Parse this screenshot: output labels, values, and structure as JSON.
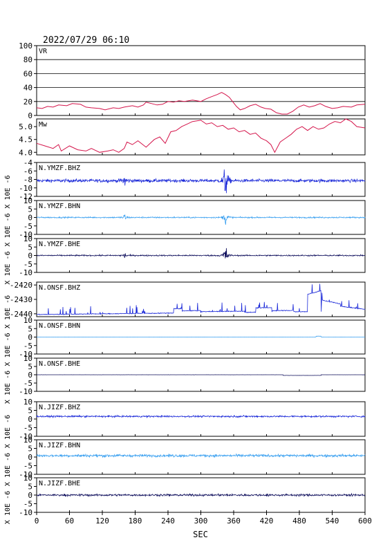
{
  "header": {
    "datetime": "2022/07/29 06:10"
  },
  "chart_data": {
    "type": "line",
    "xlabel": "SEC",
    "xlim": [
      0,
      600
    ],
    "xticks": [
      0,
      60,
      120,
      180,
      240,
      300,
      360,
      420,
      480,
      540,
      600
    ],
    "panels": [
      {
        "label": "VR",
        "kind": "line",
        "color": "#d4144a",
        "ylim": [
          0,
          100
        ],
        "yticks": [
          "0",
          "20",
          "40",
          "60",
          "80",
          "100"
        ],
        "grid": true,
        "points": [
          [
            0,
            11
          ],
          [
            10,
            10
          ],
          [
            20,
            13
          ],
          [
            30,
            12
          ],
          [
            40,
            15
          ],
          [
            55,
            14
          ],
          [
            65,
            17
          ],
          [
            80,
            16
          ],
          [
            90,
            12
          ],
          [
            100,
            11
          ],
          [
            115,
            10
          ],
          [
            125,
            8
          ],
          [
            140,
            11
          ],
          [
            150,
            10
          ],
          [
            160,
            12
          ],
          [
            175,
            14
          ],
          [
            185,
            12
          ],
          [
            195,
            15
          ],
          [
            200,
            19
          ],
          [
            210,
            17
          ],
          [
            220,
            15
          ],
          [
            230,
            16
          ],
          [
            240,
            20
          ],
          [
            250,
            19
          ],
          [
            260,
            21
          ],
          [
            270,
            20
          ],
          [
            285,
            22
          ],
          [
            300,
            20
          ],
          [
            310,
            24
          ],
          [
            320,
            27
          ],
          [
            330,
            30
          ],
          [
            338,
            33
          ],
          [
            345,
            30
          ],
          [
            352,
            26
          ],
          [
            358,
            20
          ],
          [
            365,
            13
          ],
          [
            372,
            8
          ],
          [
            380,
            10
          ],
          [
            390,
            14
          ],
          [
            400,
            16
          ],
          [
            410,
            12
          ],
          [
            418,
            10
          ],
          [
            428,
            9
          ],
          [
            438,
            4
          ],
          [
            448,
            2
          ],
          [
            458,
            2
          ],
          [
            468,
            6
          ],
          [
            478,
            12
          ],
          [
            488,
            15
          ],
          [
            498,
            12
          ],
          [
            508,
            14
          ],
          [
            518,
            17
          ],
          [
            528,
            13
          ],
          [
            540,
            10
          ],
          [
            550,
            11
          ],
          [
            560,
            13
          ],
          [
            575,
            12
          ],
          [
            585,
            15
          ],
          [
            600,
            16
          ]
        ]
      },
      {
        "label": "Mw",
        "kind": "line",
        "color": "#d4144a",
        "ylim": [
          3.9,
          5.3
        ],
        "yticks": [
          "4.0",
          "4.5",
          "5.0"
        ],
        "grid": false,
        "points": [
          [
            0,
            4.35
          ],
          [
            15,
            4.25
          ],
          [
            30,
            4.15
          ],
          [
            40,
            4.3
          ],
          [
            45,
            4.05
          ],
          [
            60,
            4.25
          ],
          [
            75,
            4.1
          ],
          [
            90,
            4.05
          ],
          [
            100,
            4.15
          ],
          [
            115,
            4.0
          ],
          [
            130,
            4.05
          ],
          [
            140,
            4.1
          ],
          [
            150,
            4.0
          ],
          [
            160,
            4.15
          ],
          [
            165,
            4.4
          ],
          [
            175,
            4.3
          ],
          [
            185,
            4.45
          ],
          [
            200,
            4.2
          ],
          [
            215,
            4.5
          ],
          [
            225,
            4.6
          ],
          [
            235,
            4.35
          ],
          [
            245,
            4.8
          ],
          [
            255,
            4.85
          ],
          [
            265,
            5.0
          ],
          [
            275,
            5.1
          ],
          [
            285,
            5.2
          ],
          [
            300,
            5.25
          ],
          [
            310,
            5.1
          ],
          [
            320,
            5.15
          ],
          [
            330,
            5.0
          ],
          [
            340,
            5.05
          ],
          [
            350,
            4.9
          ],
          [
            360,
            4.95
          ],
          [
            370,
            4.8
          ],
          [
            380,
            4.85
          ],
          [
            390,
            4.7
          ],
          [
            400,
            4.75
          ],
          [
            410,
            4.55
          ],
          [
            420,
            4.45
          ],
          [
            428,
            4.3
          ],
          [
            435,
            4.0
          ],
          [
            445,
            4.4
          ],
          [
            455,
            4.55
          ],
          [
            465,
            4.7
          ],
          [
            475,
            4.9
          ],
          [
            485,
            5.0
          ],
          [
            495,
            4.85
          ],
          [
            505,
            5.0
          ],
          [
            515,
            4.9
          ],
          [
            525,
            4.95
          ],
          [
            535,
            5.1
          ],
          [
            545,
            5.2
          ],
          [
            555,
            5.15
          ],
          [
            565,
            5.3
          ],
          [
            575,
            5.2
          ],
          [
            585,
            5.0
          ],
          [
            600,
            4.95
          ]
        ]
      },
      {
        "label": "N.YMZF.BHZ",
        "kind": "wave",
        "color": "#1a28d8",
        "ylim": [
          -12,
          -4
        ],
        "yticks": [
          "-4",
          "-6",
          "-8",
          "-10",
          "-12"
        ],
        "unit": "X 10E -6",
        "baseline": -8.3,
        "noise": 0.35,
        "events": [
          [
            161,
            1.6
          ],
          [
            345,
            4.8
          ]
        ]
      },
      {
        "label": "N.YMZF.BHN",
        "kind": "wave",
        "color": "#3aa0f0",
        "ylim": [
          -10,
          10
        ],
        "yticks": [
          "10",
          "5",
          "0",
          "-5",
          "-10"
        ],
        "unit": "X 10E -6",
        "baseline": 0,
        "noise": 0.35,
        "events": [
          [
            161,
            2.2
          ],
          [
            346,
            4.8
          ]
        ]
      },
      {
        "label": "N.YMZF.BHE",
        "kind": "wave",
        "color": "#0c0c5a",
        "ylim": [
          -10,
          10
        ],
        "yticks": [
          "10",
          "5",
          "0",
          "-5",
          "-10"
        ],
        "unit": "X 10E -6",
        "baseline": 0,
        "noise": 0.35,
        "events": [
          [
            161,
            1.7
          ],
          [
            345,
            7.0
          ]
        ]
      },
      {
        "label": "N.ONSF.BHZ",
        "kind": "wave",
        "color": "#1a28d8",
        "ylim": [
          -2442,
          -2418
        ],
        "yticks": [
          "-2420",
          "-2430",
          "-2440"
        ],
        "unit": "X 10E -6",
        "baseline": -2440,
        "noise": 0.25,
        "events": []
      },
      {
        "label": "N.ONSF.BHN",
        "kind": "wave",
        "color": "#3aa0f0",
        "ylim": [
          -10,
          10
        ],
        "yticks": [
          "10",
          "5",
          "0",
          "-5",
          "-10"
        ],
        "unit": "X 10E -6",
        "baseline": 0,
        "noise": 0.04,
        "events": []
      },
      {
        "label": "N.ONSF.BHE",
        "kind": "wave",
        "color": "#0c0c5a",
        "ylim": [
          -10,
          10
        ],
        "yticks": [
          "10",
          "5",
          "0",
          "-5",
          "-10"
        ],
        "unit": "X 10E -6",
        "baseline": 0,
        "noise": 0.03,
        "events": []
      },
      {
        "label": "N.JIZF.BHZ",
        "kind": "wave",
        "color": "#1a28d8",
        "ylim": [
          -10,
          10
        ],
        "yticks": [
          "10",
          "5",
          "0",
          "-5",
          "-10"
        ],
        "unit": "X 10E -6",
        "baseline": 1.5,
        "noise": 0.45,
        "events": []
      },
      {
        "label": "N.JIZF.BHN",
        "kind": "wave",
        "color": "#3aa0f0",
        "ylim": [
          -10,
          10
        ],
        "yticks": [
          "10",
          "5",
          "0",
          "-5",
          "-10"
        ],
        "unit": "X 10E -6",
        "baseline": 0.8,
        "noise": 0.7,
        "events": []
      },
      {
        "label": "N.JIZF.BHE",
        "kind": "wave",
        "color": "#0c0c5a",
        "ylim": [
          -10,
          10
        ],
        "yticks": [
          "10",
          "5",
          "0",
          "-5",
          "-10"
        ],
        "unit": "X 10E -6",
        "baseline": 0,
        "noise": 0.55,
        "events": []
      }
    ]
  }
}
